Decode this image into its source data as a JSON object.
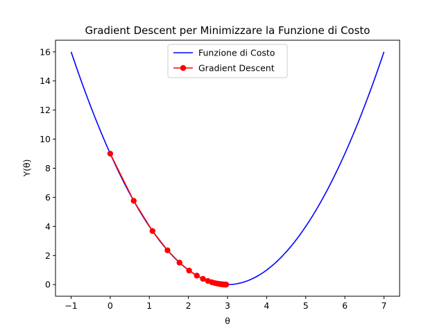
{
  "chart_data": {
    "type": "line",
    "title": "Gradient Descent per Minimizzare la Funzione di Costo",
    "xlabel": "θ",
    "ylabel": "Y(θ)",
    "xlim": [
      -1.4,
      7.4
    ],
    "ylim": [
      -0.8,
      16.8
    ],
    "xticks": [
      -1,
      0,
      1,
      2,
      3,
      4,
      5,
      6,
      7
    ],
    "yticks": [
      0,
      2,
      4,
      6,
      8,
      10,
      12,
      14,
      16
    ],
    "grid": false,
    "legend_position": "top-center",
    "series": [
      {
        "name": "Funzione di Costo",
        "color": "#0000ff",
        "marker": "none",
        "function": "(θ - 3)^2",
        "x_range": [
          -1,
          7
        ]
      },
      {
        "name": "Gradient Descent",
        "color": "#ff0000",
        "marker": "circle",
        "x": [
          0,
          0.6,
          1.08,
          1.464,
          1.771,
          2.017,
          2.214,
          2.371,
          2.497,
          2.597,
          2.678,
          2.742,
          2.794,
          2.835,
          2.868,
          2.894,
          2.916,
          2.932,
          2.946,
          2.957,
          2.965
        ],
        "y": [
          9,
          5.76,
          3.686,
          2.359,
          1.51,
          0.966,
          0.618,
          0.396,
          0.253,
          0.162,
          0.104,
          0.066,
          0.042,
          0.027,
          0.017,
          0.011,
          0.007,
          0.005,
          0.003,
          0.002,
          0.001
        ]
      }
    ]
  }
}
